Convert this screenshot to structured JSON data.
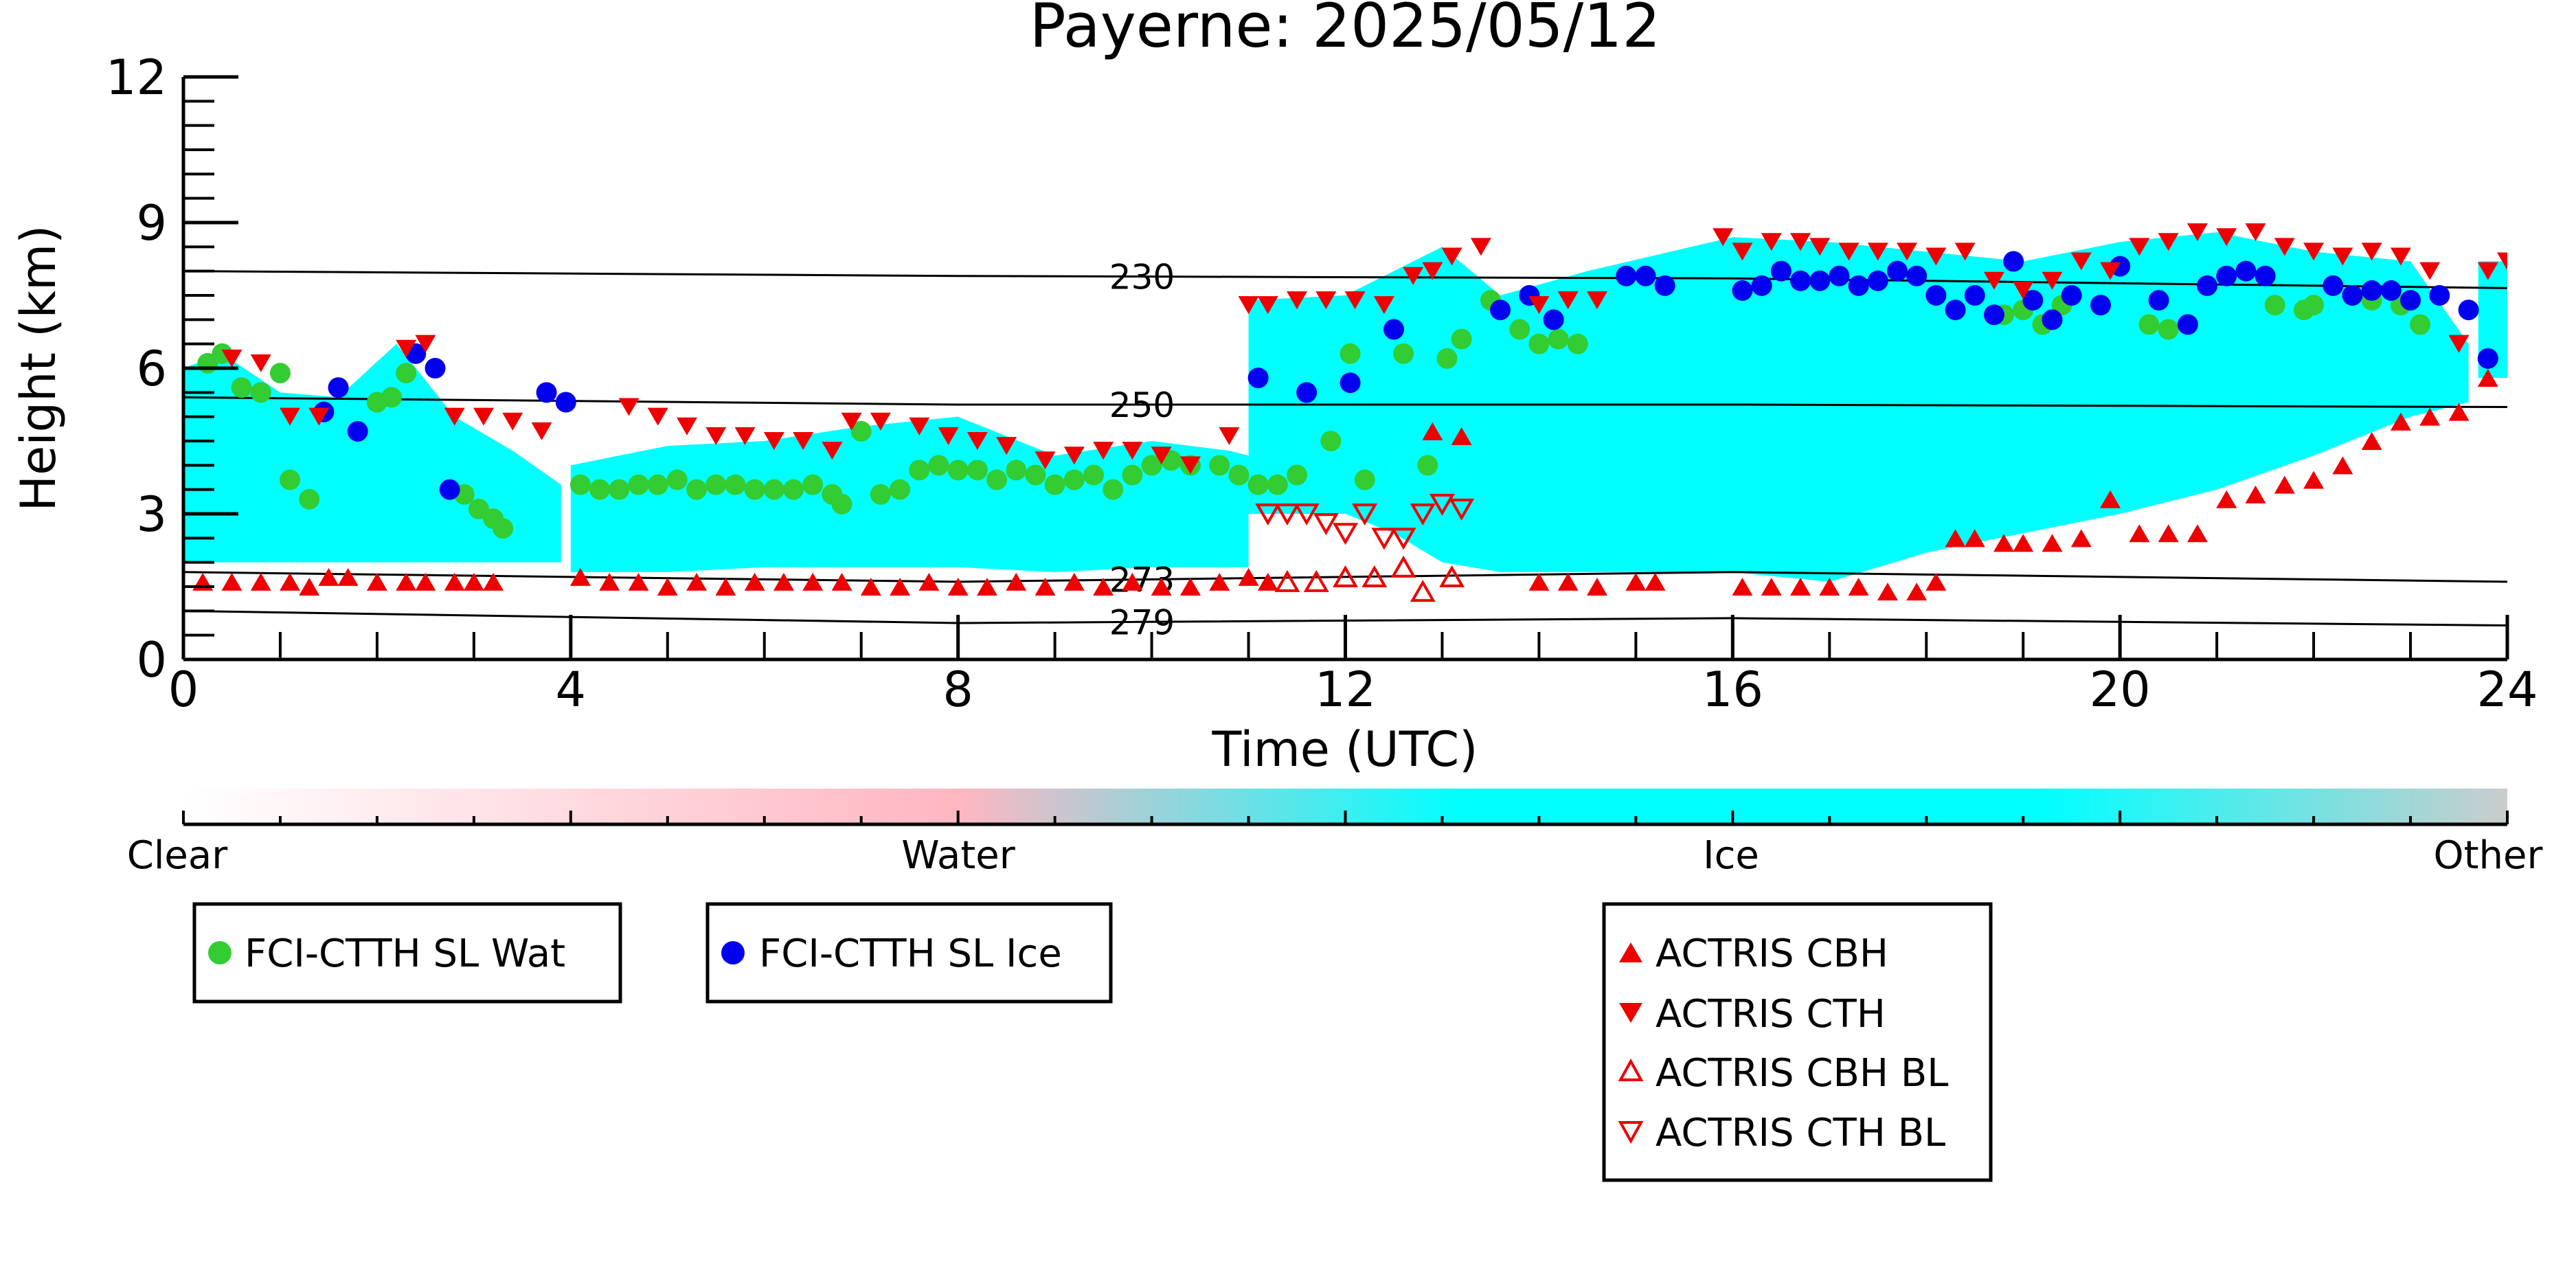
{
  "chart_data": {
    "type": "scatter",
    "title": "Payerne: 2025/05/12",
    "xlabel": "Time (UTC)",
    "ylabel": "Height (km)",
    "xlim": [
      0,
      24
    ],
    "ylim": [
      0,
      12
    ],
    "xticks": [
      0,
      4,
      8,
      12,
      16,
      20,
      24
    ],
    "yticks": [
      0,
      3,
      6,
      9,
      12
    ],
    "grid": false,
    "colorbar": {
      "labels": [
        "Clear",
        "Water",
        "Ice",
        "Other"
      ],
      "colors": [
        "#ffffff",
        "#ffb6c1",
        "#00ffff",
        "#cccccc"
      ]
    },
    "classification_regions": [
      {
        "class": "Ice",
        "color": "#00ffff",
        "x": [
          0,
          0.4,
          1.0,
          1.6,
          2.2,
          2.8,
          3.4,
          3.9
        ],
        "top": [
          6.0,
          6.3,
          5.5,
          5.4,
          6.5,
          5.0,
          4.3,
          3.6
        ],
        "base": [
          2.0,
          2.0,
          2.0,
          2.0,
          2.0,
          2.0,
          2.0,
          2.0
        ]
      },
      {
        "class": "Ice",
        "color": "#00ffff",
        "x": [
          4.0,
          5.0,
          6.0,
          7.0,
          8.0,
          9.0,
          10.0,
          10.8,
          11.0
        ],
        "top": [
          4.0,
          4.4,
          4.5,
          4.8,
          5.0,
          4.2,
          4.5,
          4.3,
          4.2
        ],
        "base": [
          1.8,
          1.8,
          1.9,
          1.9,
          1.9,
          1.8,
          1.9,
          1.9,
          1.9
        ]
      },
      {
        "class": "Ice",
        "color": "#00ffff",
        "x": [
          11.0,
          12.0,
          12.5,
          13.0,
          13.6,
          14.5,
          16.0,
          17.0,
          18.0,
          19.0,
          20.0,
          21.0,
          22.0,
          23.0,
          23.6
        ],
        "top": [
          7.4,
          7.5,
          8.0,
          8.5,
          7.5,
          8.0,
          8.7,
          8.6,
          8.4,
          8.2,
          8.6,
          8.8,
          8.4,
          8.2,
          6.5
        ],
        "base": [
          3.0,
          3.0,
          2.6,
          2.0,
          1.8,
          1.8,
          1.8,
          1.6,
          2.2,
          2.6,
          3.0,
          3.5,
          4.2,
          5.0,
          5.3
        ]
      },
      {
        "class": "Ice",
        "color": "#00ffff",
        "x": [
          23.7,
          24.0
        ],
        "top": [
          8.2,
          8.2
        ],
        "base": [
          5.8,
          5.8
        ]
      }
    ],
    "isotherms": [
      {
        "label": "230",
        "x": [
          0,
          8,
          16,
          24
        ],
        "y": [
          8.0,
          7.9,
          7.85,
          7.65
        ]
      },
      {
        "label": "250",
        "x": [
          0,
          8,
          16,
          24
        ],
        "y": [
          5.4,
          5.25,
          5.25,
          5.2
        ]
      },
      {
        "label": "273",
        "x": [
          0,
          8,
          16,
          24
        ],
        "y": [
          1.8,
          1.6,
          1.8,
          1.6
        ]
      },
      {
        "label": "279",
        "x": [
          0,
          8,
          16,
          24
        ],
        "y": [
          1.0,
          0.75,
          0.85,
          0.7
        ]
      }
    ],
    "series": [
      {
        "name": "FCI-CTTH SL Wat",
        "marker": "circle",
        "color": "#33cc33",
        "x": [
          0.25,
          0.4,
          0.6,
          0.8,
          1.0,
          1.1,
          1.3,
          2.0,
          2.15,
          2.3,
          2.9,
          3.05,
          3.2,
          3.3,
          4.1,
          4.3,
          4.5,
          4.7,
          4.9,
          5.1,
          5.3,
          5.5,
          5.7,
          5.9,
          6.1,
          6.3,
          6.5,
          6.7,
          6.8,
          7.0,
          7.2,
          7.4,
          7.6,
          7.8,
          8.0,
          8.2,
          8.4,
          8.6,
          8.8,
          9.0,
          9.2,
          9.4,
          9.6,
          9.8,
          10.0,
          10.2,
          10.4,
          10.7,
          10.9,
          11.1,
          11.3,
          11.5,
          11.85,
          12.05,
          12.2,
          12.6,
          12.85,
          13.05,
          13.2,
          13.5,
          13.8,
          14.0,
          14.2,
          14.4,
          18.8,
          19.0,
          19.2,
          19.4,
          20.3,
          20.5,
          21.6,
          21.9,
          22.0,
          22.4,
          22.6,
          22.9,
          23.1
        ],
        "y": [
          6.1,
          6.3,
          5.6,
          5.5,
          5.9,
          3.7,
          3.3,
          5.3,
          5.4,
          5.9,
          3.4,
          3.1,
          2.9,
          2.7,
          3.6,
          3.5,
          3.5,
          3.6,
          3.6,
          3.7,
          3.5,
          3.6,
          3.6,
          3.5,
          3.5,
          3.5,
          3.6,
          3.4,
          3.2,
          4.7,
          3.4,
          3.5,
          3.9,
          4.0,
          3.9,
          3.9,
          3.7,
          3.9,
          3.8,
          3.6,
          3.7,
          3.8,
          3.5,
          3.8,
          4.0,
          4.1,
          4.0,
          4.0,
          3.8,
          3.6,
          3.6,
          3.8,
          4.5,
          6.3,
          3.7,
          6.3,
          4.0,
          6.2,
          6.6,
          7.4,
          6.8,
          6.5,
          6.6,
          6.5,
          7.1,
          7.2,
          6.9,
          7.3,
          6.9,
          6.8,
          7.3,
          7.2,
          7.3,
          7.5,
          7.4,
          7.3,
          6.9
        ]
      },
      {
        "name": "FCI-CTTH SL Ice",
        "marker": "circle",
        "color": "#0000ee",
        "x": [
          1.45,
          1.6,
          1.8,
          2.4,
          2.6,
          2.75,
          3.75,
          3.95,
          11.1,
          11.6,
          12.05,
          12.5,
          13.6,
          13.9,
          14.15,
          14.9,
          15.1,
          15.3,
          16.1,
          16.3,
          16.5,
          16.7,
          16.9,
          17.1,
          17.3,
          17.5,
          17.7,
          17.9,
          18.1,
          18.3,
          18.5,
          18.7,
          18.9,
          19.1,
          19.3,
          19.5,
          19.8,
          20.0,
          20.4,
          20.7,
          20.9,
          21.1,
          21.3,
          21.5,
          22.2,
          22.4,
          22.6,
          22.8,
          23.0,
          23.3,
          23.6,
          23.8
        ],
        "y": [
          5.1,
          5.6,
          4.7,
          6.3,
          6.0,
          3.5,
          5.5,
          5.3,
          5.8,
          5.5,
          5.7,
          6.8,
          7.2,
          7.5,
          7.0,
          7.9,
          7.9,
          7.7,
          7.6,
          7.7,
          8.0,
          7.8,
          7.8,
          7.9,
          7.7,
          7.8,
          8.0,
          7.9,
          7.5,
          7.2,
          7.5,
          7.1,
          8.2,
          7.4,
          7.0,
          7.5,
          7.3,
          8.1,
          7.4,
          6.9,
          7.7,
          7.9,
          8.0,
          7.9,
          7.7,
          7.5,
          7.6,
          7.6,
          7.4,
          7.5,
          7.2,
          6.2
        ]
      },
      {
        "name": "ACTRIS CBH",
        "marker": "triangle-up",
        "color": "#ee0000",
        "filled": true,
        "x": [
          0.2,
          0.5,
          0.8,
          1.1,
          1.3,
          1.5,
          1.7,
          2.0,
          2.3,
          2.5,
          2.8,
          3.0,
          3.2,
          4.1,
          4.4,
          4.7,
          5.0,
          5.3,
          5.6,
          5.9,
          6.2,
          6.5,
          6.8,
          7.1,
          7.4,
          7.7,
          8.0,
          8.3,
          8.6,
          8.9,
          9.2,
          9.5,
          9.8,
          10.1,
          10.4,
          10.7,
          11.0,
          11.2,
          12.9,
          13.2,
          14.0,
          14.3,
          14.6,
          15.0,
          15.2,
          16.1,
          16.4,
          16.7,
          17.0,
          17.3,
          17.6,
          17.9,
          18.1,
          18.3,
          18.5,
          18.8,
          19.0,
          19.3,
          19.6,
          19.9,
          20.2,
          20.5,
          20.8,
          21.1,
          21.4,
          21.7,
          22.0,
          22.3,
          22.6,
          22.9,
          23.2,
          23.5,
          23.8
        ],
        "y": [
          1.6,
          1.6,
          1.6,
          1.6,
          1.5,
          1.7,
          1.7,
          1.6,
          1.6,
          1.6,
          1.6,
          1.6,
          1.6,
          1.7,
          1.6,
          1.6,
          1.5,
          1.6,
          1.5,
          1.6,
          1.6,
          1.6,
          1.6,
          1.5,
          1.5,
          1.6,
          1.5,
          1.5,
          1.6,
          1.5,
          1.6,
          1.5,
          1.6,
          1.5,
          1.5,
          1.6,
          1.7,
          1.6,
          4.7,
          4.6,
          1.6,
          1.6,
          1.5,
          1.6,
          1.6,
          1.5,
          1.5,
          1.5,
          1.5,
          1.5,
          1.4,
          1.4,
          1.6,
          2.5,
          2.5,
          2.4,
          2.4,
          2.4,
          2.5,
          3.3,
          2.6,
          2.6,
          2.6,
          3.3,
          3.4,
          3.6,
          3.7,
          4.0,
          4.5,
          4.9,
          5.0,
          5.1,
          5.8
        ]
      },
      {
        "name": "ACTRIS CTH",
        "marker": "triangle-down",
        "color": "#ee0000",
        "filled": true,
        "x": [
          0.5,
          0.8,
          1.1,
          1.4,
          2.3,
          2.5,
          2.8,
          3.1,
          3.4,
          3.7,
          4.6,
          4.9,
          5.2,
          5.5,
          5.8,
          6.1,
          6.4,
          6.7,
          6.9,
          7.2,
          7.6,
          7.9,
          8.2,
          8.5,
          8.9,
          9.2,
          9.5,
          9.8,
          10.1,
          10.4,
          10.8,
          11.0,
          11.2,
          11.5,
          11.8,
          12.1,
          12.4,
          12.7,
          12.9,
          13.1,
          13.4,
          14.0,
          14.3,
          14.6,
          15.9,
          16.1,
          16.4,
          16.7,
          16.9,
          17.2,
          17.5,
          17.8,
          18.1,
          18.4,
          18.7,
          19.0,
          19.3,
          19.6,
          19.9,
          20.2,
          20.5,
          20.8,
          21.1,
          21.4,
          21.7,
          22.0,
          22.3,
          22.6,
          22.9,
          23.2,
          23.5,
          23.8,
          24.0
        ],
        "y": [
          6.2,
          6.1,
          5.0,
          5.0,
          6.4,
          6.5,
          5.0,
          5.0,
          4.9,
          4.7,
          5.2,
          5.0,
          4.8,
          4.6,
          4.6,
          4.5,
          4.5,
          4.3,
          4.9,
          4.9,
          4.8,
          4.6,
          4.5,
          4.4,
          4.1,
          4.2,
          4.3,
          4.3,
          4.2,
          4.0,
          4.6,
          7.3,
          7.3,
          7.4,
          7.4,
          7.4,
          7.3,
          7.9,
          8.0,
          8.3,
          8.5,
          7.3,
          7.4,
          7.4,
          8.7,
          8.4,
          8.6,
          8.6,
          8.5,
          8.4,
          8.4,
          8.4,
          8.3,
          8.4,
          7.8,
          7.6,
          7.8,
          8.2,
          8.0,
          8.5,
          8.6,
          8.8,
          8.7,
          8.8,
          8.5,
          8.4,
          8.3,
          8.4,
          8.3,
          8.0,
          6.5,
          8.0,
          8.2
        ]
      },
      {
        "name": "ACTRIS CBH BL",
        "marker": "triangle-up",
        "color": "#ee0000",
        "filled": false,
        "x": [
          11.4,
          11.7,
          12.0,
          12.3,
          12.6,
          12.8,
          13.1
        ],
        "y": [
          1.6,
          1.6,
          1.7,
          1.7,
          1.9,
          1.4,
          1.7
        ]
      },
      {
        "name": "ACTRIS CTH BL",
        "marker": "triangle-down",
        "color": "#ee0000",
        "filled": false,
        "x": [
          11.2,
          11.4,
          11.6,
          11.8,
          12.0,
          12.2,
          12.4,
          12.6,
          12.8,
          13.0,
          13.2
        ],
        "y": [
          3.0,
          3.0,
          3.0,
          2.8,
          2.6,
          3.0,
          2.5,
          2.5,
          3.0,
          3.2,
          3.1
        ]
      }
    ]
  }
}
